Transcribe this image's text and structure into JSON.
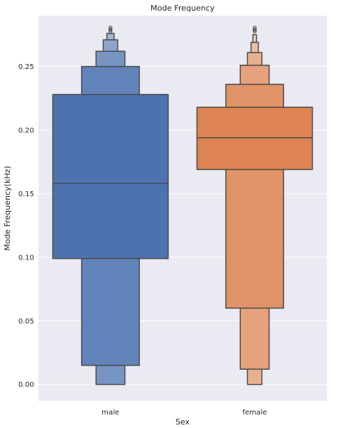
{
  "chart_data": {
    "type": "boxen",
    "title": "Mode Frequency",
    "xlabel": "Sex",
    "ylabel": "Mode Frequency(kHz)",
    "categories": [
      "male",
      "female"
    ],
    "ylim": [
      -0.013,
      0.29
    ],
    "yticks": [
      0.0,
      0.05,
      0.1,
      0.15,
      0.2,
      0.25
    ],
    "ytick_labels": [
      "0.00",
      "0.05",
      "0.10",
      "0.15",
      "0.20",
      "0.25"
    ],
    "grid": true,
    "series": [
      {
        "category": "male",
        "color": "#4c72b0",
        "median": 0.158,
        "boxes": [
          {
            "low": 0.099,
            "high": 0.228,
            "width": 0.8
          },
          {
            "low": 0.015,
            "high": 0.25,
            "width": 0.4
          },
          {
            "low": 0.0,
            "high": 0.262,
            "width": 0.2
          },
          {
            "low": 0.0,
            "high": 0.271,
            "width": 0.1
          },
          {
            "low": 0.0,
            "high": 0.276,
            "width": 0.05
          }
        ],
        "outliers": [
          0.2775,
          0.2785,
          0.2795,
          0.2805
        ]
      },
      {
        "category": "female",
        "color": "#dd8452",
        "median": 0.194,
        "boxes": [
          {
            "low": 0.169,
            "high": 0.218,
            "width": 0.8
          },
          {
            "low": 0.06,
            "high": 0.236,
            "width": 0.4
          },
          {
            "low": 0.012,
            "high": 0.251,
            "width": 0.2
          },
          {
            "low": 0.0,
            "high": 0.261,
            "width": 0.1
          },
          {
            "low": 0.0,
            "high": 0.269,
            "width": 0.05
          },
          {
            "low": 0.0,
            "high": 0.275,
            "width": 0.025
          }
        ],
        "outliers": [
          0.2775,
          0.2785,
          0.2795,
          0.2805
        ]
      }
    ]
  }
}
